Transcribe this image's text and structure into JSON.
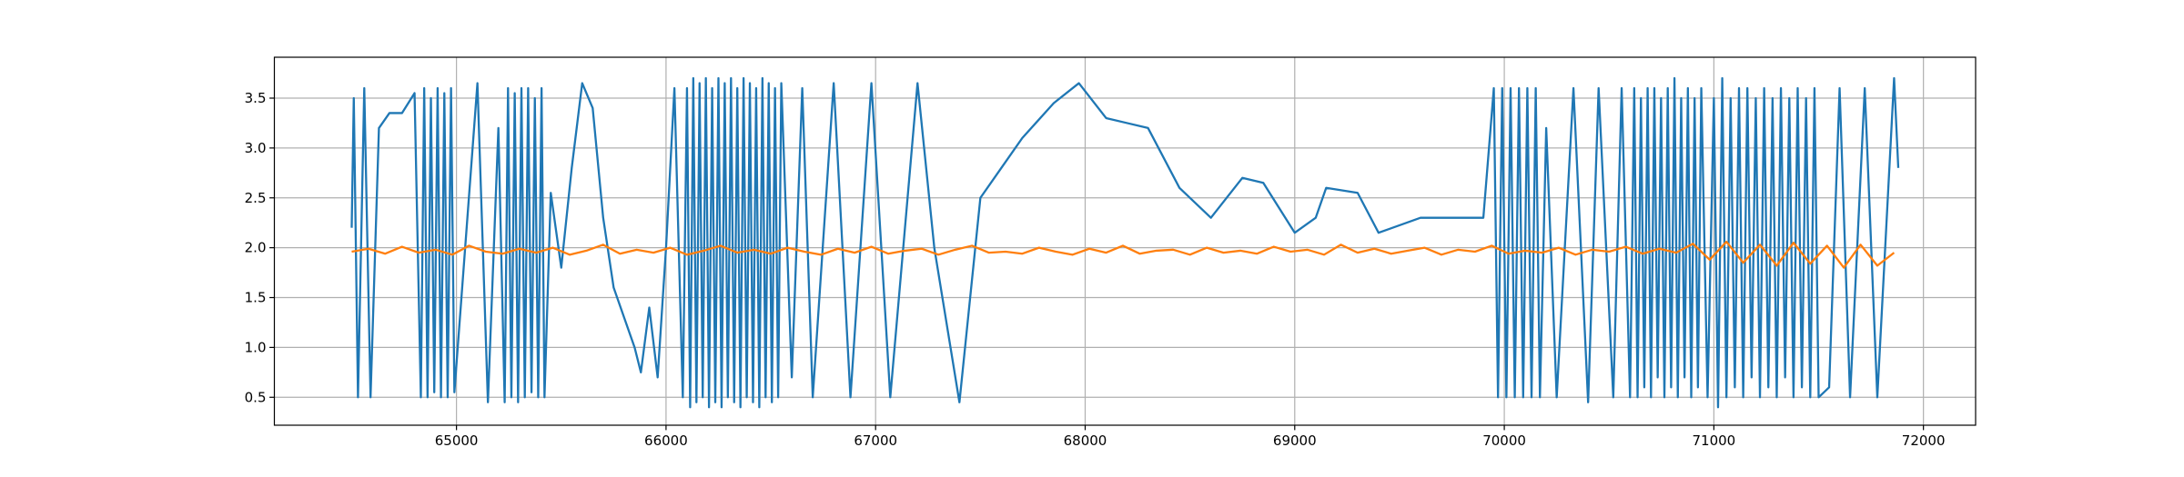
{
  "chart_data": {
    "type": "line",
    "xlim": [
      64131,
      72249
    ],
    "ylim": [
      0.22,
      3.91
    ],
    "xticks": [
      65000,
      66000,
      67000,
      68000,
      69000,
      70000,
      71000,
      72000
    ],
    "yticks": [
      0.5,
      {
        "value": 1,
        "label": "1.0"
      },
      1.5,
      {
        "value": 2,
        "label": "2.0"
      },
      2.5,
      {
        "value": 3,
        "label": "3.0"
      },
      3.5
    ],
    "grid": true,
    "series": [
      {
        "color": "#1f77b4",
        "x": [
          64500,
          64510,
          64530,
          64560,
          64590,
          64630,
          64680,
          64740,
          64800,
          64830,
          64846,
          64862,
          64878,
          64894,
          64910,
          64926,
          64942,
          64958,
          64974,
          64990,
          65100,
          65150,
          65200,
          65230,
          65246,
          65262,
          65278,
          65294,
          65310,
          65326,
          65342,
          65358,
          65374,
          65390,
          65406,
          65420,
          65450,
          65500,
          65550,
          65600,
          65650,
          65700,
          65750,
          65800,
          65850,
          65880,
          65920,
          65960,
          66000,
          66040,
          66080,
          66100,
          66115,
          66130,
          66145,
          66160,
          66175,
          66190,
          66205,
          66220,
          66235,
          66250,
          66265,
          66280,
          66295,
          66310,
          66325,
          66340,
          66355,
          66370,
          66385,
          66400,
          66415,
          66430,
          66445,
          66460,
          66475,
          66490,
          66505,
          66520,
          66535,
          66550,
          66600,
          66650,
          66700,
          66800,
          66880,
          66980,
          67070,
          67200,
          67280,
          67400,
          67500,
          67600,
          67700,
          67850,
          67970,
          68100,
          68200,
          68300,
          68450,
          68600,
          68750,
          68850,
          69000,
          69100,
          69150,
          69300,
          69400,
          69600,
          69900,
          69950,
          69970,
          69990,
          70010,
          70030,
          70050,
          70070,
          70090,
          70110,
          70130,
          70150,
          70170,
          70200,
          70250,
          70330,
          70400,
          70450,
          70520,
          70560,
          70600,
          70620,
          70636,
          70652,
          70668,
          70684,
          70700,
          70716,
          70732,
          70748,
          70764,
          70780,
          70796,
          70812,
          70828,
          70844,
          70860,
          70876,
          70892,
          70908,
          70924,
          70940,
          70970,
          71000,
          71020,
          71040,
          71060,
          71080,
          71100,
          71120,
          71140,
          71160,
          71180,
          71200,
          71220,
          71240,
          71260,
          71280,
          71300,
          71320,
          71340,
          71360,
          71380,
          71400,
          71420,
          71440,
          71460,
          71480,
          71500,
          71550,
          71600,
          71650,
          71720,
          71780,
          71860,
          71880
        ],
        "values": [
          2.2,
          3.5,
          0.5,
          3.6,
          0.5,
          3.2,
          3.35,
          3.35,
          3.55,
          0.5,
          3.6,
          0.5,
          3.5,
          0.55,
          3.6,
          0.5,
          3.55,
          0.5,
          3.6,
          0.55,
          3.65,
          0.45,
          3.2,
          0.45,
          3.6,
          0.5,
          3.55,
          0.45,
          3.6,
          0.5,
          3.6,
          0.55,
          3.5,
          0.5,
          3.6,
          0.5,
          2.55,
          1.8,
          2.8,
          3.65,
          3.4,
          2.3,
          1.6,
          1.3,
          1.0,
          0.75,
          1.4,
          0.7,
          2.0,
          3.6,
          0.5,
          3.6,
          0.4,
          3.7,
          0.45,
          3.65,
          0.5,
          3.7,
          0.4,
          3.6,
          0.45,
          3.7,
          0.4,
          3.65,
          0.5,
          3.7,
          0.45,
          3.6,
          0.4,
          3.7,
          0.5,
          3.65,
          0.45,
          3.6,
          0.4,
          3.7,
          0.5,
          3.65,
          0.45,
          3.6,
          0.5,
          3.65,
          0.7,
          3.6,
          0.5,
          3.65,
          0.5,
          3.65,
          0.5,
          3.65,
          2.0,
          0.45,
          2.5,
          2.8,
          3.1,
          3.45,
          3.65,
          3.3,
          3.25,
          3.2,
          2.6,
          2.3,
          2.7,
          2.65,
          2.15,
          2.3,
          2.6,
          2.55,
          2.15,
          2.3,
          2.3,
          3.6,
          0.5,
          3.6,
          0.5,
          3.6,
          0.5,
          3.6,
          0.5,
          3.6,
          0.5,
          3.6,
          0.5,
          3.2,
          0.5,
          3.6,
          0.45,
          3.6,
          0.5,
          3.6,
          0.5,
          3.6,
          0.5,
          3.5,
          0.6,
          3.6,
          0.5,
          3.6,
          0.7,
          3.5,
          0.5,
          3.6,
          0.6,
          3.7,
          0.5,
          3.5,
          0.7,
          3.6,
          0.5,
          3.5,
          0.6,
          3.6,
          0.5,
          3.5,
          0.4,
          3.7,
          0.5,
          3.5,
          0.6,
          3.6,
          0.5,
          3.6,
          0.7,
          3.5,
          0.5,
          3.6,
          0.6,
          3.5,
          0.5,
          3.6,
          0.7,
          3.5,
          0.5,
          3.6,
          0.6,
          3.5,
          0.5,
          3.6,
          0.5,
          0.6,
          3.6,
          0.5,
          3.6,
          0.5,
          3.7,
          2.8
        ]
      },
      {
        "color": "#ff7f0e",
        "x": [
          64500,
          64580,
          64660,
          64740,
          64820,
          64900,
          64980,
          65060,
          65140,
          65220,
          65300,
          65380,
          65460,
          65540,
          65620,
          65700,
          65780,
          65860,
          65940,
          66020,
          66100,
          66180,
          66260,
          66340,
          66420,
          66500,
          66580,
          66660,
          66740,
          66820,
          66900,
          66980,
          67060,
          67140,
          67220,
          67300,
          67380,
          67460,
          67540,
          67620,
          67700,
          67780,
          67860,
          67940,
          68020,
          68100,
          68180,
          68260,
          68340,
          68420,
          68500,
          68580,
          68660,
          68740,
          68820,
          68900,
          68980,
          69060,
          69140,
          69220,
          69300,
          69380,
          69460,
          69540,
          69620,
          69700,
          69780,
          69860,
          69940,
          70020,
          70100,
          70180,
          70260,
          70340,
          70420,
          70500,
          70580,
          70660,
          70740,
          70820,
          70900,
          70980,
          71060,
          71140,
          71220,
          71300,
          71380,
          71460,
          71540,
          71620,
          71700,
          71780,
          71860
        ],
        "values": [
          1.96,
          1.99,
          1.94,
          2.01,
          1.95,
          1.98,
          1.93,
          2.02,
          1.96,
          1.94,
          1.99,
          1.95,
          2.0,
          1.93,
          1.97,
          2.03,
          1.94,
          1.98,
          1.95,
          2.0,
          1.93,
          1.97,
          2.02,
          1.95,
          1.98,
          1.94,
          2.0,
          1.96,
          1.93,
          1.99,
          1.95,
          2.01,
          1.94,
          1.97,
          1.99,
          1.93,
          1.98,
          2.02,
          1.95,
          1.96,
          1.94,
          2.0,
          1.96,
          1.93,
          1.99,
          1.95,
          2.02,
          1.94,
          1.97,
          1.98,
          1.93,
          2.0,
          1.95,
          1.97,
          1.94,
          2.01,
          1.96,
          1.98,
          1.93,
          2.03,
          1.95,
          1.99,
          1.94,
          1.97,
          2.0,
          1.93,
          1.98,
          1.96,
          2.02,
          1.94,
          1.97,
          1.95,
          2.0,
          1.93,
          1.98,
          1.96,
          2.01,
          1.94,
          1.99,
          1.95,
          2.04,
          1.88,
          2.06,
          1.85,
          2.03,
          1.82,
          2.05,
          1.84,
          2.02,
          1.8,
          2.03,
          1.82,
          1.95
        ]
      }
    ]
  }
}
